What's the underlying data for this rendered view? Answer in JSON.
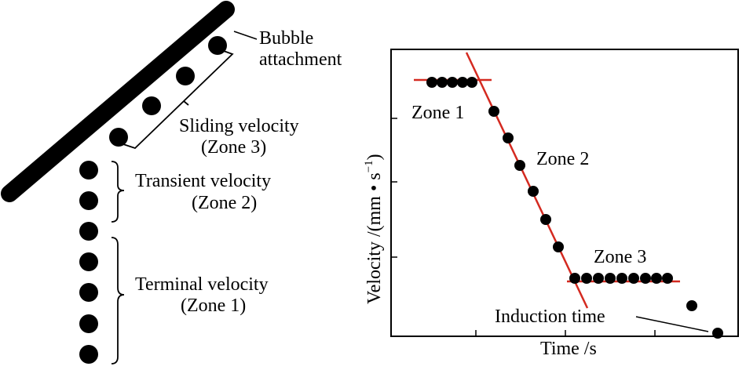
{
  "diagram": {
    "plate_label_line1": "Bubble",
    "plate_label_line2": "attachment",
    "sliding_line1": "Sliding velocity",
    "sliding_line2": "(Zone 3)",
    "transient_line1": "Transient velocity",
    "transient_line2": "(Zone 2)",
    "terminal_line1": "Terminal velocity",
    "terminal_line2": "(Zone 1)"
  },
  "plot": {
    "xlabel": "Time /s",
    "ylabel_main": "Velocity /(mm • s",
    "ylabel_exp": "−1",
    "ylabel_close": ")",
    "zone1": "Zone 1",
    "zone2": "Zone 2",
    "zone3": "Zone 3",
    "induction_time": "Induction time",
    "fit_color": "#d42a20"
  }
}
